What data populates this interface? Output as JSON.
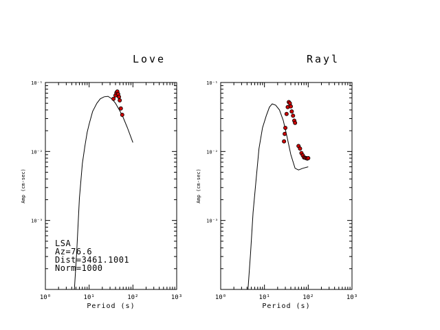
{
  "chart_data": [
    {
      "type": "line",
      "title": "Love",
      "xlabel": "Period (s)",
      "ylabel": "Amp (cm-sec)",
      "xscale": "log",
      "yscale": "log",
      "xlim": [
        1,
        1000
      ],
      "ylim": [
        0.0001,
        0.1
      ],
      "x_tick_labels": [
        "10⁰",
        "10¹",
        "10²",
        "10³"
      ],
      "y_tick_labels": [
        "10⁻³",
        "10⁻²",
        "10⁻¹"
      ],
      "grid": false,
      "annotations": [
        "LSA",
        "Az=76.6",
        "Dist=3461.1001",
        "Norm=1000"
      ],
      "series": [
        {
          "kind": "line",
          "x": [
            4.6,
            5.2,
            6,
            7,
            8,
            9,
            10,
            12,
            15,
            18,
            22,
            27,
            33,
            40,
            50,
            60,
            75,
            100
          ],
          "y": [
            0.0001,
            0.00035,
            0.0021,
            0.0067,
            0.012,
            0.019,
            0.025,
            0.038,
            0.05,
            0.058,
            0.062,
            0.063,
            0.058,
            0.05,
            0.039,
            0.031,
            0.022,
            0.0135
          ],
          "color": "#000000"
        },
        {
          "kind": "scatter",
          "x": [
            36,
            40,
            42,
            44,
            46,
            48,
            50,
            53,
            57
          ],
          "y": [
            0.058,
            0.065,
            0.071,
            0.074,
            0.068,
            0.062,
            0.055,
            0.042,
            0.034
          ],
          "color": "#cc0000"
        }
      ]
    },
    {
      "type": "line",
      "title": "Rayl",
      "xlabel": "Period (s)",
      "ylabel": "Amp (cm-sec)",
      "xscale": "log",
      "yscale": "log",
      "xlim": [
        1,
        1000
      ],
      "ylim": [
        0.0001,
        0.1
      ],
      "x_tick_labels": [
        "10⁰",
        "10¹",
        "10²",
        "10³"
      ],
      "y_tick_labels": [
        "10⁻³",
        "10⁻²",
        "10⁻¹"
      ],
      "grid": false,
      "series": [
        {
          "kind": "line",
          "x": [
            4.2,
            4.8,
            5.5,
            6.5,
            7.5,
            9,
            11,
            13,
            15,
            18,
            22,
            27,
            33,
            40,
            50,
            60,
            75,
            100
          ],
          "y": [
            0.0001,
            0.00033,
            0.0013,
            0.0042,
            0.011,
            0.022,
            0.033,
            0.044,
            0.049,
            0.047,
            0.04,
            0.028,
            0.016,
            0.009,
            0.0057,
            0.0054,
            0.0057,
            0.006
          ],
          "color": "#000000"
        },
        {
          "kind": "scatter",
          "x": [
            28,
            29,
            30,
            32,
            34,
            36,
            38,
            40,
            42,
            45,
            48,
            50,
            60,
            65,
            70,
            75,
            80,
            85,
            90,
            95,
            100
          ],
          "y": [
            0.014,
            0.018,
            0.022,
            0.035,
            0.044,
            0.052,
            0.05,
            0.045,
            0.038,
            0.033,
            0.028,
            0.026,
            0.012,
            0.011,
            0.0095,
            0.0088,
            0.0082,
            0.0081,
            0.008,
            0.0079,
            0.008
          ],
          "color": "#cc0000"
        }
      ]
    }
  ]
}
